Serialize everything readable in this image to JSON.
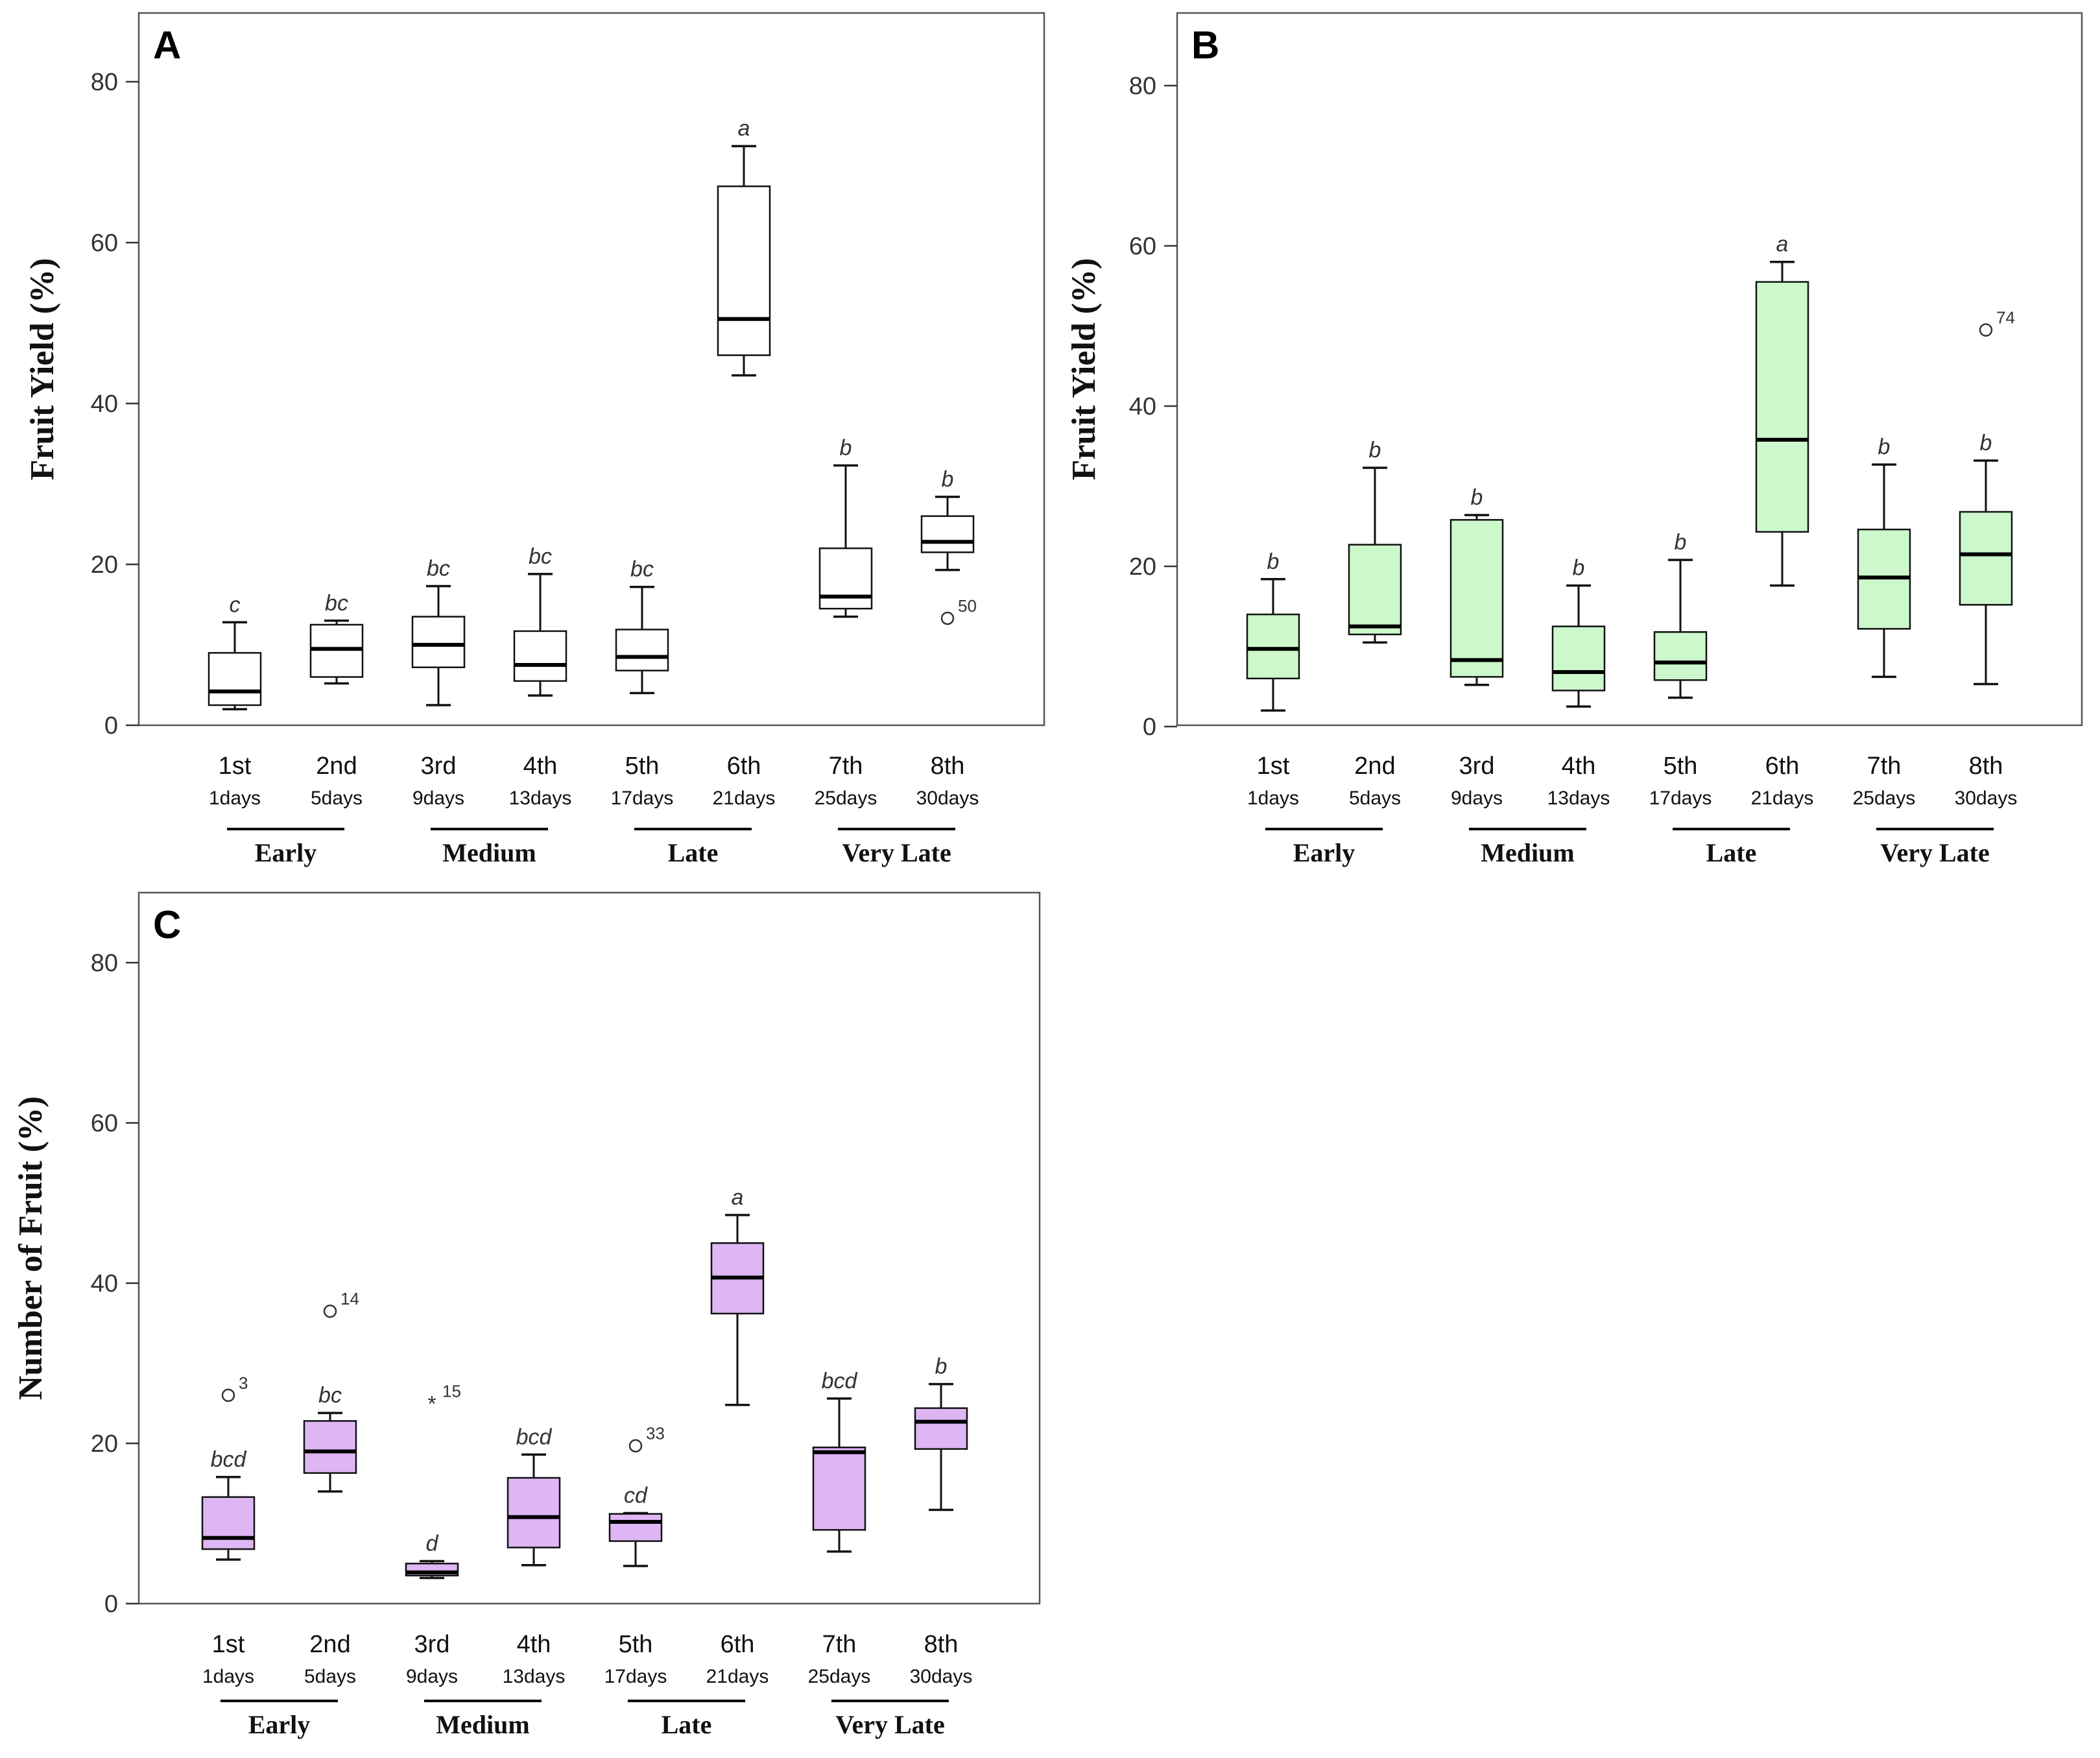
{
  "chart_data": [
    {
      "type": "box",
      "panel": "A",
      "ylabel": "Fruit Yield (%)",
      "ylim": [
        0,
        88
      ],
      "yticks": [
        0,
        20,
        40,
        60,
        80
      ],
      "box_color": "#ffffff",
      "categories": [
        {
          "label": "1st",
          "sub": "1days",
          "letter": "c",
          "whisker_low": 2,
          "q1": 2.5,
          "median": 4.2,
          "q3": 9,
          "whisker_high": 12.8,
          "outliers": []
        },
        {
          "label": "2nd",
          "sub": "5days",
          "letter": "bc",
          "whisker_low": 5.2,
          "q1": 6,
          "median": 9.5,
          "q3": 12.5,
          "whisker_high": 13,
          "outliers": []
        },
        {
          "label": "3rd",
          "sub": "9days",
          "letter": "bc",
          "whisker_low": 2.5,
          "q1": 7.2,
          "median": 10,
          "q3": 13.5,
          "whisker_high": 17.3,
          "outliers": []
        },
        {
          "label": "4th",
          "sub": "13days",
          "letter": "bc",
          "whisker_low": 3.7,
          "q1": 5.5,
          "median": 7.5,
          "q3": 11.7,
          "whisker_high": 18.8,
          "outliers": []
        },
        {
          "label": "5th",
          "sub": "17days",
          "letter": "bc",
          "whisker_low": 4,
          "q1": 6.8,
          "median": 8.5,
          "q3": 11.9,
          "whisker_high": 17.2,
          "outliers": []
        },
        {
          "label": "6th",
          "sub": "21days",
          "letter": "a",
          "whisker_low": 43.5,
          "q1": 46,
          "median": 50.5,
          "q3": 67,
          "whisker_high": 72,
          "outliers": []
        },
        {
          "label": "7th",
          "sub": "25days",
          "letter": "b",
          "whisker_low": 13.5,
          "q1": 14.5,
          "median": 16,
          "q3": 22,
          "whisker_high": 32.3,
          "outliers": []
        },
        {
          "label": "8th",
          "sub": "30days",
          "letter": "b",
          "whisker_low": 19.3,
          "q1": 21.5,
          "median": 22.8,
          "q3": 26,
          "whisker_high": 28.4,
          "outliers": [
            {
              "value": 13.3,
              "label": "50",
              "marker": "circle"
            }
          ]
        }
      ],
      "groups": [
        {
          "label": "Early",
          "from": 0,
          "to": 1
        },
        {
          "label": "Medium",
          "from": 2,
          "to": 3
        },
        {
          "label": "Late",
          "from": 4,
          "to": 5
        },
        {
          "label": "Very Late",
          "from": 6,
          "to": 7
        }
      ]
    },
    {
      "type": "box",
      "panel": "B",
      "ylabel": "Fruit Yield (%)",
      "ylim": [
        0,
        88
      ],
      "yticks": [
        0,
        20,
        40,
        60,
        80
      ],
      "box_color": "#ccf8cc",
      "categories": [
        {
          "label": "1st",
          "sub": "1days",
          "letter": "b",
          "whisker_low": 2,
          "q1": 6,
          "median": 9.7,
          "q3": 14,
          "whisker_high": 18.4,
          "outliers": []
        },
        {
          "label": "2nd",
          "sub": "5days",
          "letter": "b",
          "whisker_low": 10.5,
          "q1": 11.5,
          "median": 12.5,
          "q3": 22.7,
          "whisker_high": 32.3,
          "outliers": []
        },
        {
          "label": "3rd",
          "sub": "9days",
          "letter": "b",
          "whisker_low": 5.2,
          "q1": 6.2,
          "median": 8.3,
          "q3": 25.8,
          "whisker_high": 26.4,
          "outliers": []
        },
        {
          "label": "4th",
          "sub": "13days",
          "letter": "b",
          "whisker_low": 2.5,
          "q1": 4.5,
          "median": 6.8,
          "q3": 12.5,
          "whisker_high": 17.6,
          "outliers": []
        },
        {
          "label": "5th",
          "sub": "17days",
          "letter": "b",
          "whisker_low": 3.6,
          "q1": 5.8,
          "median": 8,
          "q3": 11.8,
          "whisker_high": 20.8,
          "outliers": []
        },
        {
          "label": "6th",
          "sub": "21days",
          "letter": "a",
          "whisker_low": 17.6,
          "q1": 24.3,
          "median": 35.8,
          "q3": 55.5,
          "whisker_high": 58,
          "outliers": []
        },
        {
          "label": "7th",
          "sub": "25days",
          "letter": "b",
          "whisker_low": 6.2,
          "q1": 12.2,
          "median": 18.6,
          "q3": 24.6,
          "whisker_high": 32.7,
          "outliers": []
        },
        {
          "label": "8th",
          "sub": "30days",
          "letter": "b",
          "whisker_low": 5.3,
          "q1": 15.2,
          "median": 21.5,
          "q3": 26.8,
          "whisker_high": 33.2,
          "outliers": [
            {
              "value": 49.5,
              "label": "74",
              "marker": "circle"
            }
          ]
        }
      ],
      "groups": [
        {
          "label": "Early",
          "from": 0,
          "to": 1
        },
        {
          "label": "Medium",
          "from": 2,
          "to": 3
        },
        {
          "label": "Late",
          "from": 4,
          "to": 5
        },
        {
          "label": "Very Late",
          "from": 6,
          "to": 7
        }
      ]
    },
    {
      "type": "box",
      "panel": "C",
      "ylabel": "Number of Fruit (%)",
      "ylim": [
        0,
        88
      ],
      "yticks": [
        0,
        20,
        40,
        60,
        80
      ],
      "box_color": "#deb6f4",
      "categories": [
        {
          "label": "1st",
          "sub": "1days",
          "letter": "bcd",
          "whisker_low": 5.5,
          "q1": 6.8,
          "median": 8.2,
          "q3": 13.3,
          "whisker_high": 15.8,
          "outliers": [
            {
              "value": 26,
              "label": "3",
              "marker": "circle"
            }
          ]
        },
        {
          "label": "2nd",
          "sub": "5days",
          "letter": "bc",
          "whisker_low": 14,
          "q1": 16.3,
          "median": 19,
          "q3": 22.8,
          "whisker_high": 23.8,
          "outliers": [
            {
              "value": 36.5,
              "label": "14",
              "marker": "circle"
            }
          ]
        },
        {
          "label": "3rd",
          "sub": "9days",
          "letter": "d",
          "whisker_low": 3.2,
          "q1": 3.5,
          "median": 3.9,
          "q3": 5,
          "whisker_high": 5.3,
          "outliers": [
            {
              "value": 25,
              "label": "15",
              "marker": "star"
            }
          ]
        },
        {
          "label": "4th",
          "sub": "13days",
          "letter": "bcd",
          "whisker_low": 4.8,
          "q1": 7,
          "median": 10.8,
          "q3": 15.7,
          "whisker_high": 18.6,
          "outliers": []
        },
        {
          "label": "5th",
          "sub": "17days",
          "letter": "cd",
          "whisker_low": 4.7,
          "q1": 7.8,
          "median": 10.2,
          "q3": 11.2,
          "whisker_high": 11.3,
          "outliers": [
            {
              "value": 19.7,
              "label": "33",
              "marker": "circle"
            }
          ]
        },
        {
          "label": "6th",
          "sub": "21days",
          "letter": "a",
          "whisker_low": 24.8,
          "q1": 36.2,
          "median": 40.7,
          "q3": 45,
          "whisker_high": 48.5,
          "outliers": []
        },
        {
          "label": "7th",
          "sub": "25days",
          "letter": "bcd",
          "whisker_low": 6.5,
          "q1": 9.2,
          "median": 18.9,
          "q3": 19.5,
          "whisker_high": 25.6,
          "outliers": []
        },
        {
          "label": "8th",
          "sub": "30days",
          "letter": "b",
          "whisker_low": 11.7,
          "q1": 19.3,
          "median": 22.7,
          "q3": 24.4,
          "whisker_high": 27.4,
          "outliers": []
        }
      ],
      "groups": [
        {
          "label": "Early",
          "from": 0,
          "to": 1
        },
        {
          "label": "Medium",
          "from": 2,
          "to": 3
        },
        {
          "label": "Late",
          "from": 4,
          "to": 5
        },
        {
          "label": "Very Late",
          "from": 6,
          "to": 7
        }
      ]
    }
  ]
}
